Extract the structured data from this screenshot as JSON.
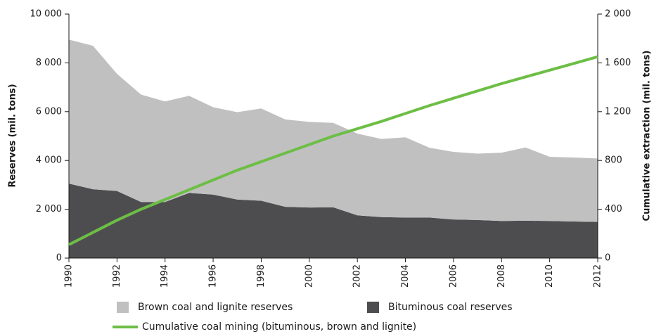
{
  "chart_data": {
    "type": "stacked-area-line",
    "x": [
      1990,
      1991,
      1992,
      1993,
      1994,
      1995,
      1996,
      1997,
      1998,
      1999,
      2000,
      2001,
      2002,
      2003,
      2004,
      2005,
      2006,
      2007,
      2008,
      2009,
      2010,
      2011,
      2012
    ],
    "xlim": [
      1990,
      2012
    ],
    "xticks": [
      1990,
      1992,
      1994,
      1996,
      1998,
      2000,
      2002,
      2004,
      2006,
      2008,
      2010,
      2012
    ],
    "y_label": "Reserves (mil. tons)",
    "y2_label": "Cumulative extraction (mil. tons)",
    "ylim": [
      0,
      10000
    ],
    "yticks": [
      0,
      {
        "value": 2000,
        "label": "2 000"
      },
      {
        "value": 4000,
        "label": "4 000"
      },
      {
        "value": 6000,
        "label": "6 000"
      },
      {
        "value": 8000,
        "label": "8 000"
      },
      {
        "value": 10000,
        "label": "10 000"
      }
    ],
    "y2lim": [
      0,
      2000
    ],
    "y2ticks": [
      0,
      400,
      800,
      {
        "value": 1200,
        "label": "1 200"
      },
      {
        "value": 1600,
        "label": "1 600"
      },
      {
        "value": 2000,
        "label": "2 000"
      }
    ],
    "series": [
      {
        "name": "Brown coal and lignite reserves",
        "color": "#c0c0c1",
        "kind": "area",
        "values": [
          5900,
          5880,
          4800,
          4400,
          4120,
          3980,
          3580,
          3580,
          3780,
          3580,
          3510,
          3460,
          3350,
          3200,
          3290,
          2860,
          2770,
          2720,
          2800,
          3000,
          2630,
          2620,
          2600
        ]
      },
      {
        "name": "Bituminous coal reserves",
        "color": "#4d4d4f",
        "kind": "area",
        "values": [
          3050,
          2820,
          2750,
          2300,
          2300,
          2670,
          2600,
          2400,
          2350,
          2100,
          2070,
          2080,
          1750,
          1680,
          1660,
          1660,
          1580,
          1560,
          1520,
          1530,
          1520,
          1500,
          1480
        ]
      },
      {
        "name": "Cumulative coal mining (bituminous, brown and lignite)",
        "color": "#6dbe45",
        "kind": "line",
        "axis": "y2",
        "values": [
          110,
          210,
          310,
          400,
          480,
          560,
          640,
          720,
          790,
          860,
          930,
          1000,
          1060,
          1120,
          1185,
          1250,
          1310,
          1370,
          1430,
          1485,
          1540,
          1595,
          1650
        ]
      }
    ]
  }
}
